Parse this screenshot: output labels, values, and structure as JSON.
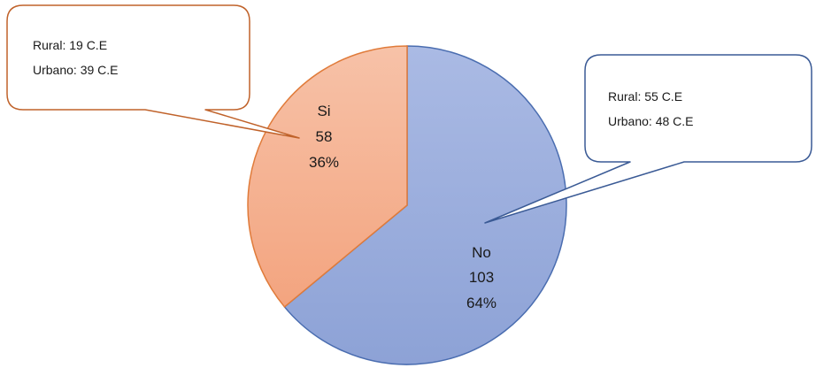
{
  "chart_data": {
    "type": "pie",
    "title": "",
    "slices": [
      {
        "name": "No",
        "value": 103,
        "percent": "64%",
        "value_label": "103",
        "color_top": "#aabae4",
        "color_bottom": "#8da2d6",
        "stroke": "#4a6db0",
        "callout": {
          "lines": [
            "Rural: 55 C.E",
            "Urbano: 48 C.E"
          ],
          "border": "#3a5a95"
        }
      },
      {
        "name": "Si",
        "value": 58,
        "percent": "36%",
        "value_label": "58",
        "color_top": "#f7c2a8",
        "color_bottom": "#f3a47f",
        "stroke": "#e07b3a",
        "callout": {
          "lines": [
            "Rural: 19 C.E",
            "Urbano: 39 C.E"
          ],
          "border": "#c0622a"
        }
      }
    ],
    "legend": "none"
  }
}
